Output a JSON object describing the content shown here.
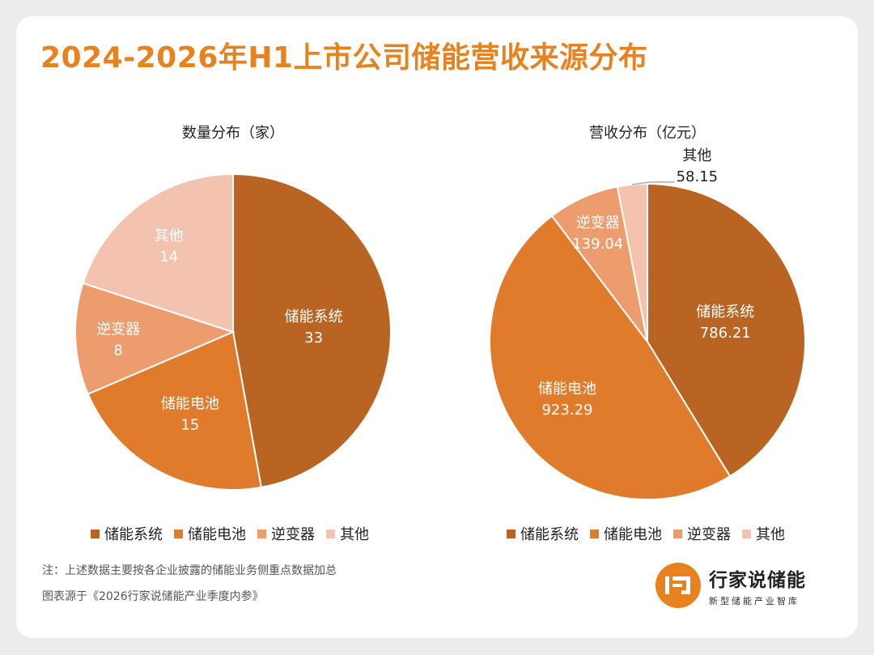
{
  "page": {
    "title": "2024-2026年H1上市公司储能营收来源分布",
    "note_line1": "注：上述数据主要按各企业披露的储能业务侧重点数据加总",
    "note_line2": "图表源于《2026行家说储能产业季度内参》",
    "brand": {
      "name": "行家说储能",
      "tagline": "新型储能产业智库",
      "logo_icon": "hjs-logo-icon"
    }
  },
  "colors": {
    "title": "#E8821E",
    "slices": [
      "#B96422",
      "#E07B2C",
      "#ED9C6E",
      "#F3C3B0"
    ]
  },
  "chart_data": [
    {
      "type": "pie",
      "title": "数量分布（家）",
      "categories": [
        "储能系统",
        "储能电池",
        "逆变器",
        "其他"
      ],
      "values": [
        33,
        15,
        8,
        14
      ],
      "value_labels": [
        "33",
        "15",
        "8",
        "14"
      ],
      "legend": "bottom"
    },
    {
      "type": "pie",
      "title": "营收分布（亿元）",
      "categories": [
        "储能系统",
        "储能电池",
        "逆变器",
        "其他"
      ],
      "values": [
        786.21,
        923.29,
        139.04,
        58.15
      ],
      "value_labels": [
        "786.21",
        "923.29",
        "139.04",
        "58.15"
      ],
      "legend": "bottom"
    }
  ]
}
